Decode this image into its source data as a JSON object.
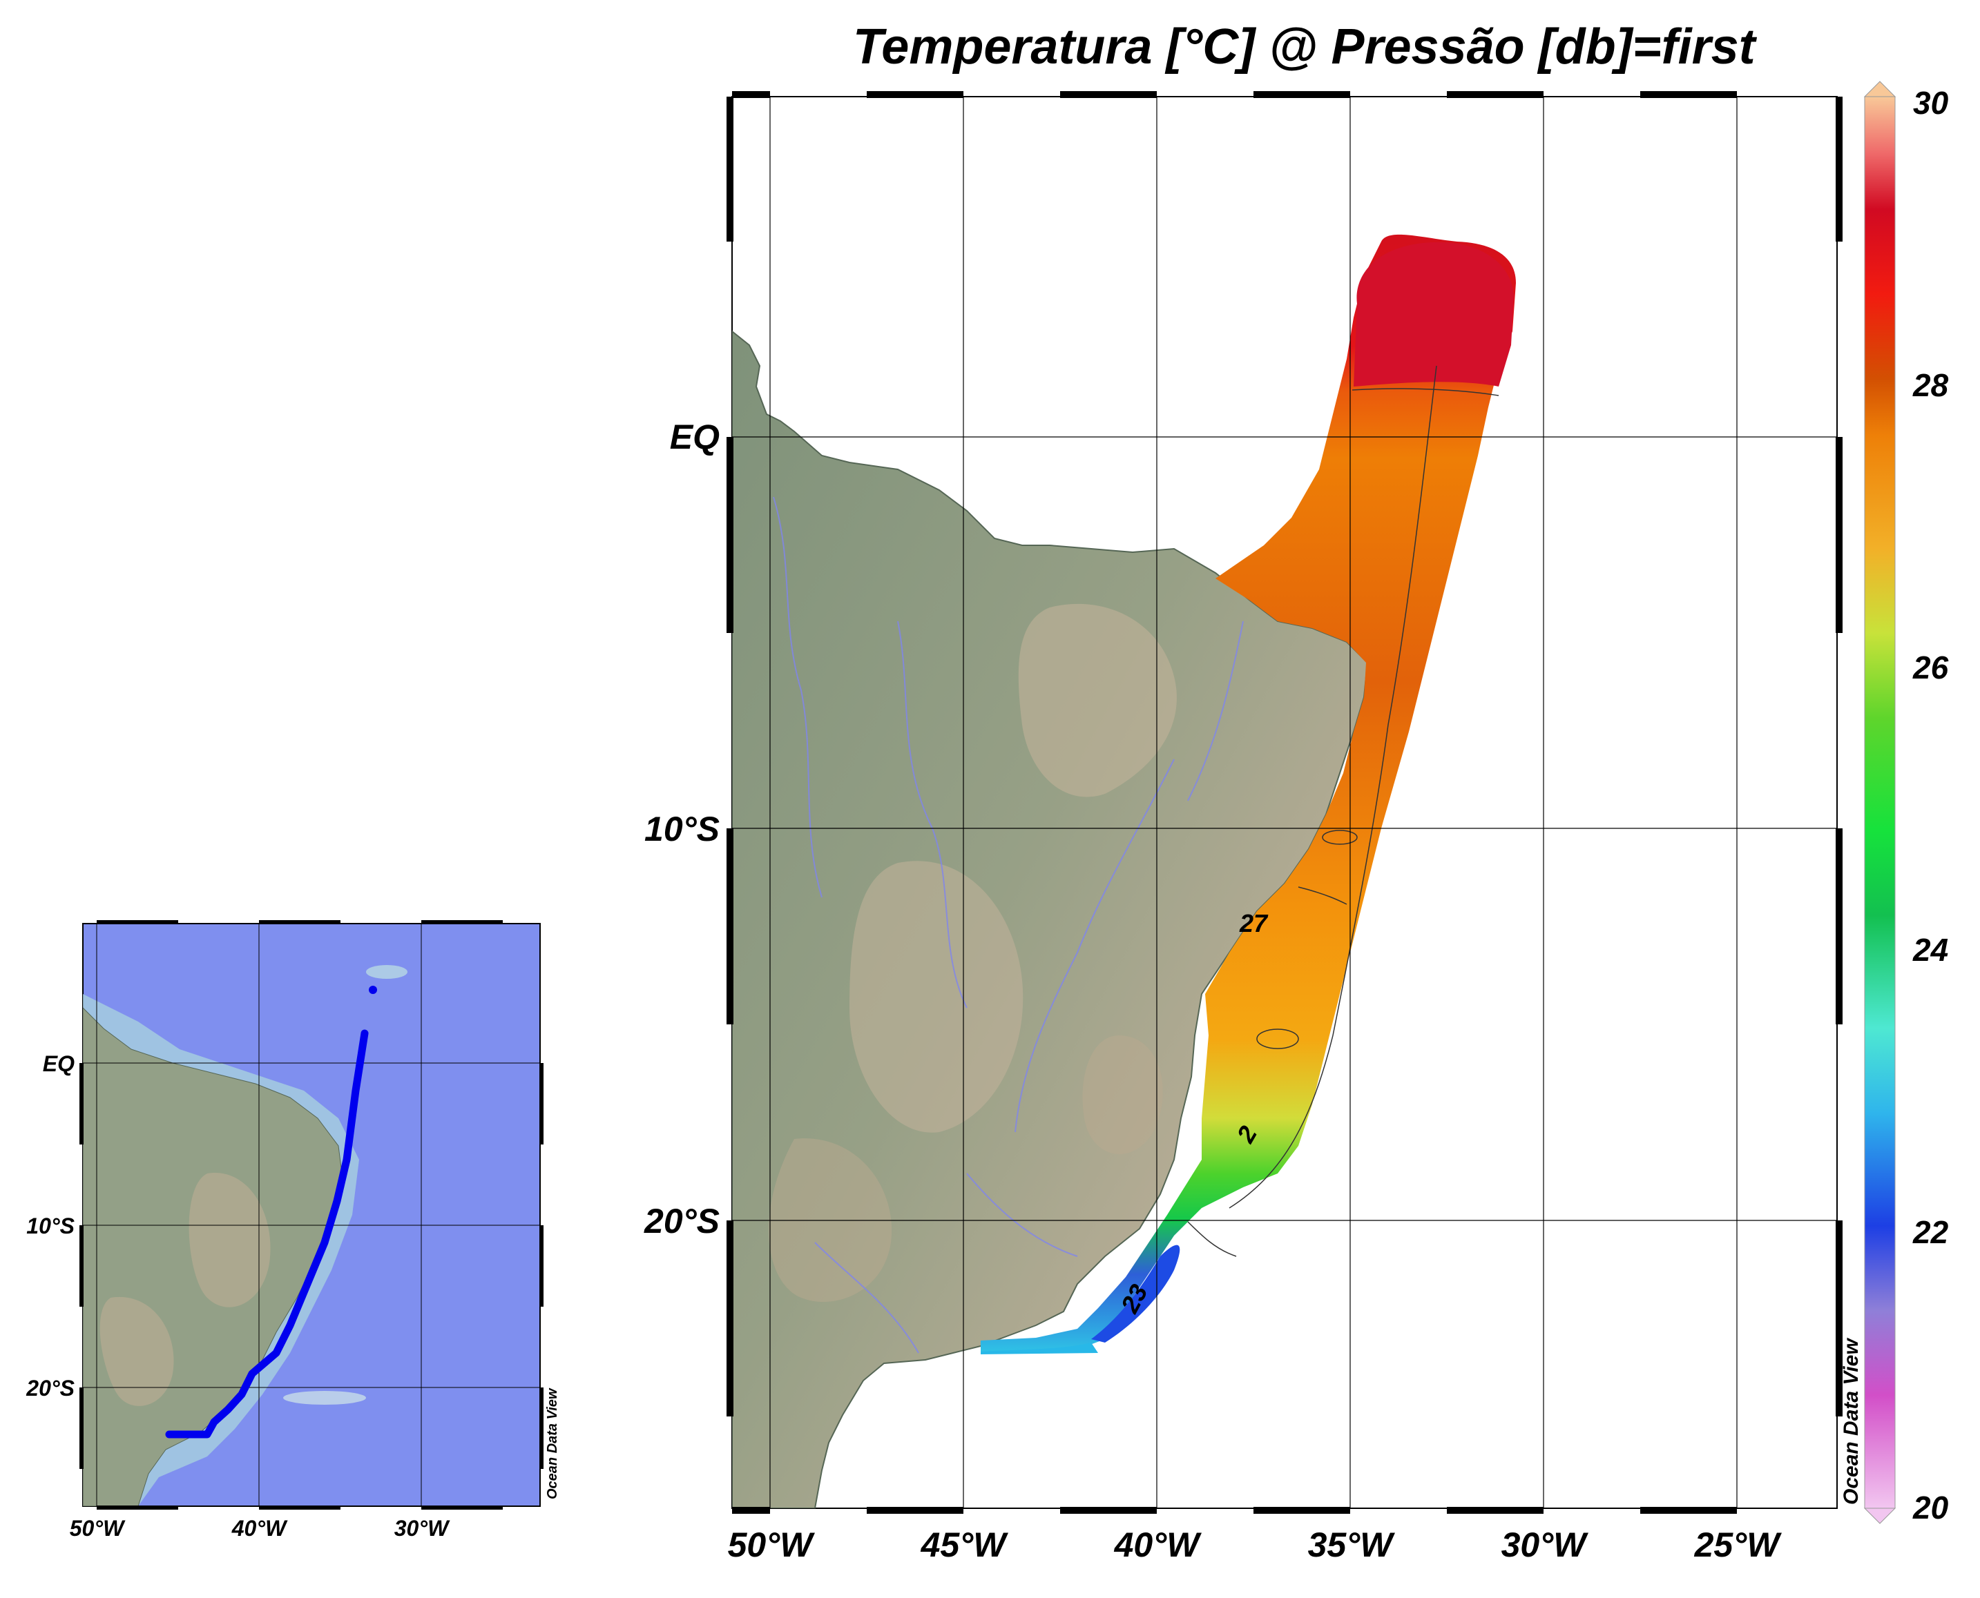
{
  "title": "Temperatura [°C] @ Pressão [db]=first",
  "watermark": "Ocean Data View",
  "main_map": {
    "lon_ticks": [
      "50°W",
      "45°W",
      "40°W",
      "35°W",
      "30°W",
      "25°W"
    ],
    "lat_ticks": [
      "EQ",
      "10°S",
      "20°S"
    ]
  },
  "inset_map": {
    "lon_ticks": [
      "50°W",
      "40°W",
      "30°W"
    ],
    "lat_ticks": [
      "EQ",
      "10°S",
      "20°S"
    ],
    "track_color": "#0000ee"
  },
  "colorbar": {
    "min": 20,
    "max": 30,
    "tick_labels": [
      "30",
      "28",
      "26",
      "24",
      "22",
      "20"
    ]
  },
  "contour_labels": [
    "27",
    "23",
    "2"
  ],
  "colors": {
    "land": "#8a9a80",
    "ocean_inset": "#7f8fef",
    "warm": "#d4101a",
    "orange": "#ee7d05",
    "green": "#2ed138",
    "blue": "#1b4be6"
  }
}
